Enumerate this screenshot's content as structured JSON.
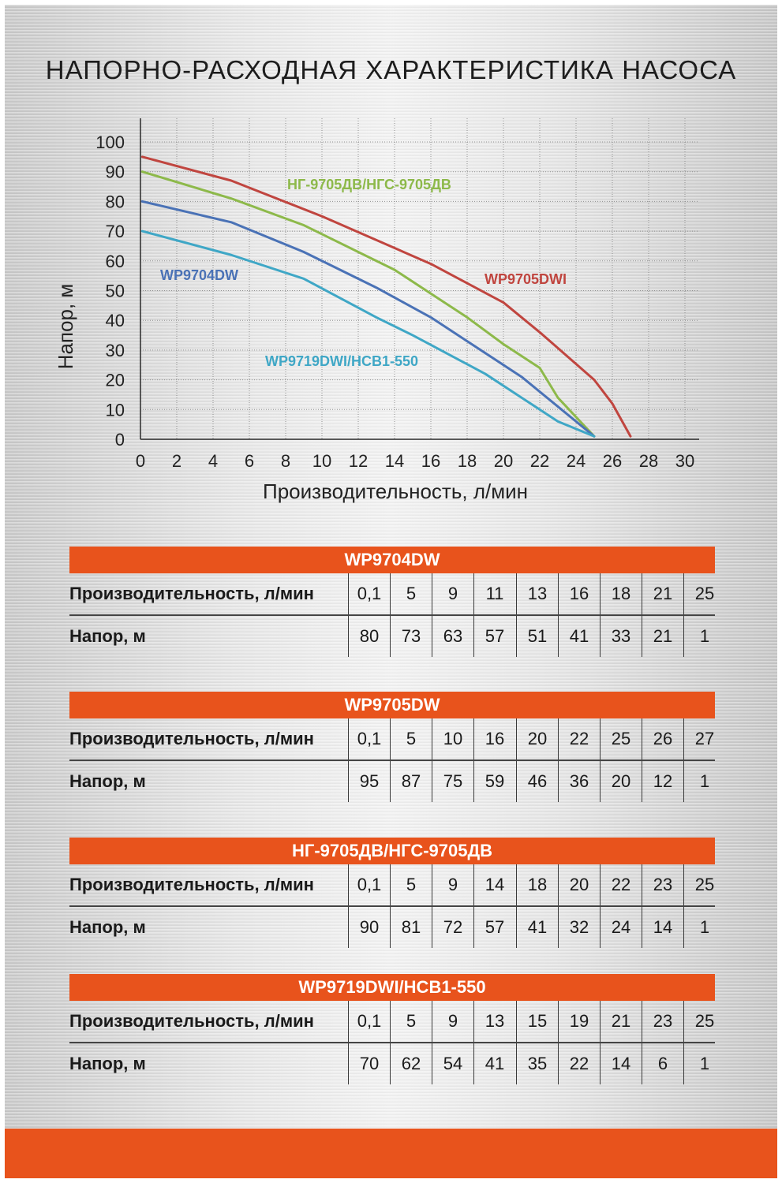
{
  "title": "НАПОРНО-РАСХОДНАЯ ХАРАКТЕРИСТИКА НАСОСА",
  "chart_data": {
    "type": "line",
    "xlabel": "Производительность, л/мин",
    "ylabel": "Напор, м",
    "xlim": [
      0,
      30
    ],
    "ylim": [
      0,
      100
    ],
    "xticks": [
      "0",
      "2",
      "4",
      "6",
      "8",
      "10",
      "12",
      "14",
      "16",
      "18",
      "20",
      "22",
      "24",
      "26",
      "28",
      "30"
    ],
    "yticks": [
      "0",
      "10",
      "20",
      "30",
      "40",
      "50",
      "60",
      "70",
      "80",
      "90",
      "100"
    ],
    "grid": true,
    "series": [
      {
        "name": "WP9705DWI",
        "color": "#c0453f",
        "x": [
          0.1,
          5,
          10,
          16,
          20,
          22,
          25,
          26,
          27
        ],
        "y": [
          95,
          87,
          75,
          59,
          46,
          36,
          20,
          12,
          1
        ]
      },
      {
        "name": "НГ-9705ДВ/НГС-9705ДВ",
        "color": "#8db94a",
        "x": [
          0.1,
          5,
          9,
          14,
          18,
          20,
          22,
          23,
          25
        ],
        "y": [
          90,
          81,
          72,
          57,
          41,
          32,
          24,
          14,
          1
        ]
      },
      {
        "name": "WP9704DW",
        "color": "#4a72b6",
        "x": [
          0.1,
          5,
          9,
          11,
          13,
          16,
          18,
          21,
          25
        ],
        "y": [
          80,
          73,
          63,
          57,
          51,
          41,
          33,
          21,
          1
        ]
      },
      {
        "name": "WP9719DWI/НСВ1-550",
        "color": "#3fa7c6",
        "x": [
          0.1,
          5,
          9,
          13,
          15,
          19,
          21,
          23,
          25
        ],
        "y": [
          70,
          62,
          54,
          41,
          35,
          22,
          14,
          6,
          1
        ]
      }
    ]
  },
  "tables": [
    {
      "name": "WP9704DW",
      "flow_label": "Производительность, л/мин",
      "head_label": "Напор, м",
      "flow": [
        "0,1",
        "5",
        "9",
        "11",
        "13",
        "16",
        "18",
        "21",
        "25"
      ],
      "head": [
        "80",
        "73",
        "63",
        "57",
        "51",
        "41",
        "33",
        "21",
        "1"
      ]
    },
    {
      "name": "WP9705DW",
      "flow_label": "Производительность, л/мин",
      "head_label": "Напор, м",
      "flow": [
        "0,1",
        "5",
        "10",
        "16",
        "20",
        "22",
        "25",
        "26",
        "27"
      ],
      "head": [
        "95",
        "87",
        "75",
        "59",
        "46",
        "36",
        "20",
        "12",
        "1"
      ]
    },
    {
      "name": "НГ-9705ДВ/НГС-9705ДВ",
      "flow_label": "Производительность, л/мин",
      "head_label": "Напор, м",
      "flow": [
        "0,1",
        "5",
        "9",
        "14",
        "18",
        "20",
        "22",
        "23",
        "25"
      ],
      "head": [
        "90",
        "81",
        "72",
        "57",
        "41",
        "32",
        "24",
        "14",
        "1"
      ]
    },
    {
      "name": "WP9719DWI/НСВ1-550",
      "flow_label": "Производительность, л/мин",
      "head_label": "Напор, м",
      "flow": [
        "0,1",
        "5",
        "9",
        "13",
        "15",
        "19",
        "21",
        "23",
        "25"
      ],
      "head": [
        "70",
        "62",
        "54",
        "41",
        "35",
        "22",
        "14",
        "6",
        "1"
      ]
    }
  ],
  "accent_color": "#e8531c"
}
